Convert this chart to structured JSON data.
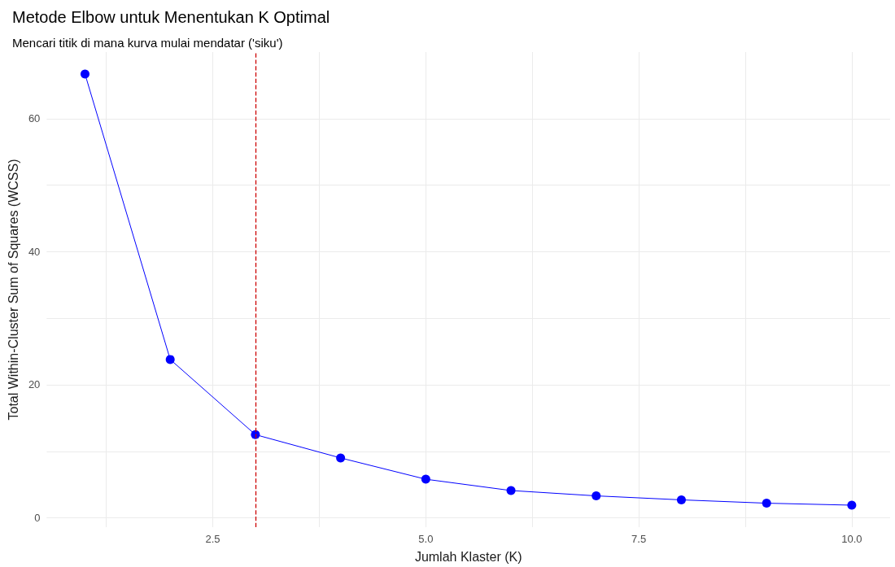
{
  "chart_data": {
    "type": "line",
    "title": "Metode Elbow untuk Menentukan K Optimal",
    "subtitle": "Mencari titik di mana kurva mulai mendatar ('siku')",
    "xlabel": "Jumlah Klaster (K)",
    "ylabel": "Total Within-Cluster Sum of Squares (WCSS)",
    "x": [
      1,
      2,
      3,
      4,
      5,
      6,
      7,
      8,
      9,
      10
    ],
    "series": [
      {
        "color": "#0000ff",
        "values": [
          66.7,
          23.8,
          12.5,
          9.0,
          5.8,
          4.1,
          3.3,
          2.7,
          2.2,
          1.9
        ]
      }
    ],
    "xlim": [
      0.55,
      10.45
    ],
    "xticks": [
      {
        "value": 1.25,
        "label": null
      },
      {
        "value": 2.5,
        "label": "2.5"
      },
      {
        "value": 3.75,
        "label": null
      },
      {
        "value": 5,
        "label": "5.0"
      },
      {
        "value": 6.25,
        "label": null
      },
      {
        "value": 7.5,
        "label": "7.5"
      },
      {
        "value": 8.75,
        "label": null
      },
      {
        "value": 10,
        "label": "10.0"
      }
    ],
    "ylim": [
      -1.4,
      70
    ],
    "yticks": [
      0,
      {
        "value": 10,
        "label": null
      },
      20,
      {
        "value": 30,
        "label": null
      },
      40,
      {
        "value": 50,
        "label": null
      },
      60
    ],
    "ref_lines": [
      {
        "axis": "x",
        "value": 3,
        "color": "#cc0000",
        "line_style": "dashed"
      }
    ],
    "grid": true,
    "marker": "circle",
    "line_style": "solid"
  }
}
